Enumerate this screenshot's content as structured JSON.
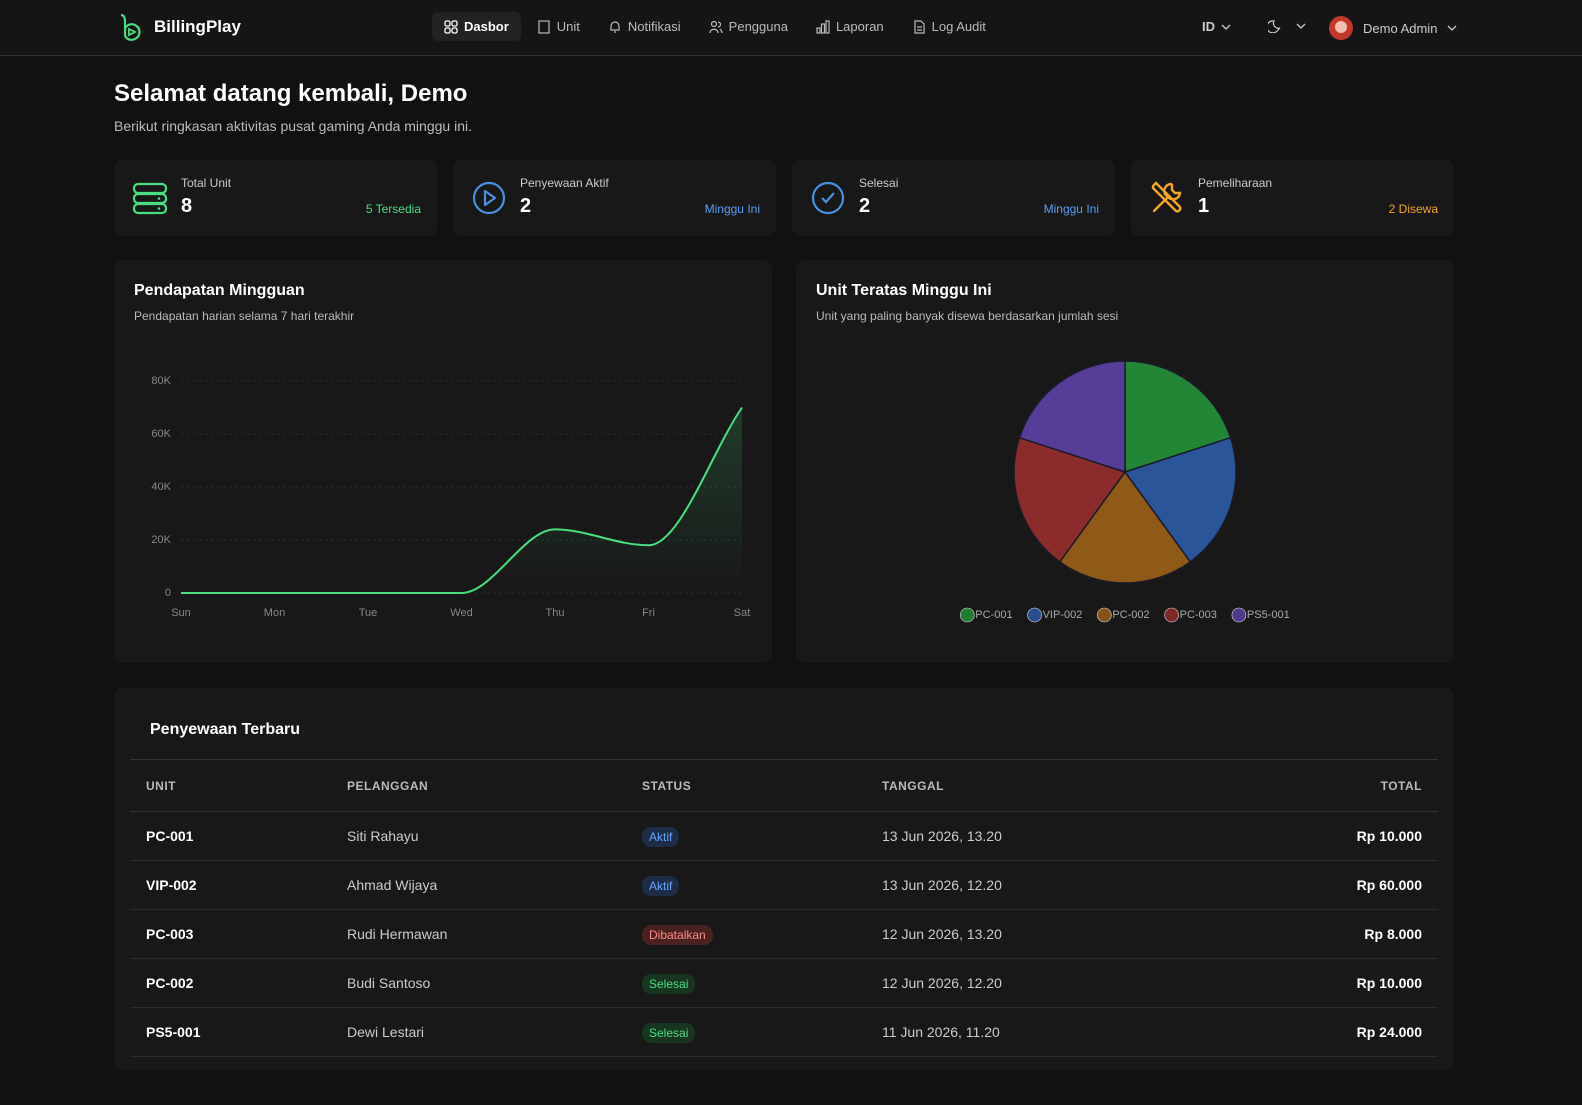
{
  "nav": {
    "brand": "BillingPlay",
    "items": [
      "Dasbor",
      "Unit",
      "Notifikasi",
      "Pengguna",
      "Laporan",
      "Log Audit"
    ],
    "language": "ID",
    "user": "Demo Admin"
  },
  "header": {
    "title": "Selamat datang kembali, Demo",
    "subtitle": "Berikut ringkasan aktivitas pusat gaming Anda minggu ini."
  },
  "stats": [
    {
      "label": "Total Unit",
      "value": 8,
      "note": "5 Tersedia"
    },
    {
      "label": "Penyewaan Aktif",
      "value": 2,
      "note": "Minggu Ini"
    },
    {
      "label": "Selesai",
      "value": 2,
      "note": "Minggu Ini"
    },
    {
      "label": "Pemeliharaan",
      "value": 1,
      "note": "2 Disewa"
    }
  ],
  "chart_data": [
    {
      "type": "line",
      "title": "Pendapatan Mingguan",
      "subtitle": "Pendapatan harian selama 7 hari terakhir",
      "categories": [
        "Sun",
        "Mon",
        "Tue",
        "Wed",
        "Thu",
        "Fri",
        "Sat"
      ],
      "values": [
        0,
        0,
        0,
        0,
        24000,
        18000,
        70000
      ],
      "color": "#4ade80",
      "ylim": [
        0,
        80000
      ],
      "yticks": [
        0,
        {
          "value": 20000,
          "label": "20K"
        },
        {
          "value": 40000,
          "label": "40K"
        },
        {
          "value": 60000,
          "label": "60K"
        },
        {
          "value": 80000,
          "label": "80K"
        }
      ],
      "grid": true
    },
    {
      "type": "pie",
      "title": "Unit Teratas Minggu Ini",
      "subtitle": "Unit yang paling banyak disewa berdasarkan jumlah sesi",
      "categories": [
        "PC-001",
        "VIP-002",
        "PC-002",
        "PC-003",
        "PS5-001"
      ],
      "values": [
        1,
        1,
        1,
        1,
        1
      ],
      "colors": [
        "#238636",
        "#2a5599",
        "#8f5a18",
        "#8b2b2b",
        "#563d98"
      ],
      "legend": "bottom"
    }
  ],
  "table": {
    "title": "Penyewaan Terbaru",
    "columns": [
      "UNIT",
      "PELANGGAN",
      "STATUS",
      "TANGGAL",
      "TOTAL"
    ],
    "rows": [
      [
        "PC-001",
        "Siti Rahayu",
        "Aktif",
        "13 Jun 2026, 13.20",
        "Rp 10.000"
      ],
      [
        "VIP-002",
        "Ahmad Wijaya",
        "Aktif",
        "13 Jun 2026, 12.20",
        "Rp 60.000"
      ],
      [
        "PC-003",
        "Rudi Hermawan",
        "Dibatalkan",
        "12 Jun 2026, 13.20",
        "Rp 8.000"
      ],
      [
        "PC-002",
        "Budi Santoso",
        "Selesai",
        "12 Jun 2026, 12.20",
        "Rp 10.000"
      ],
      [
        "PS5-001",
        "Dewi Lestari",
        "Selesai",
        "11 Jun 2026, 11.20",
        "Rp 24.000"
      ]
    ]
  }
}
